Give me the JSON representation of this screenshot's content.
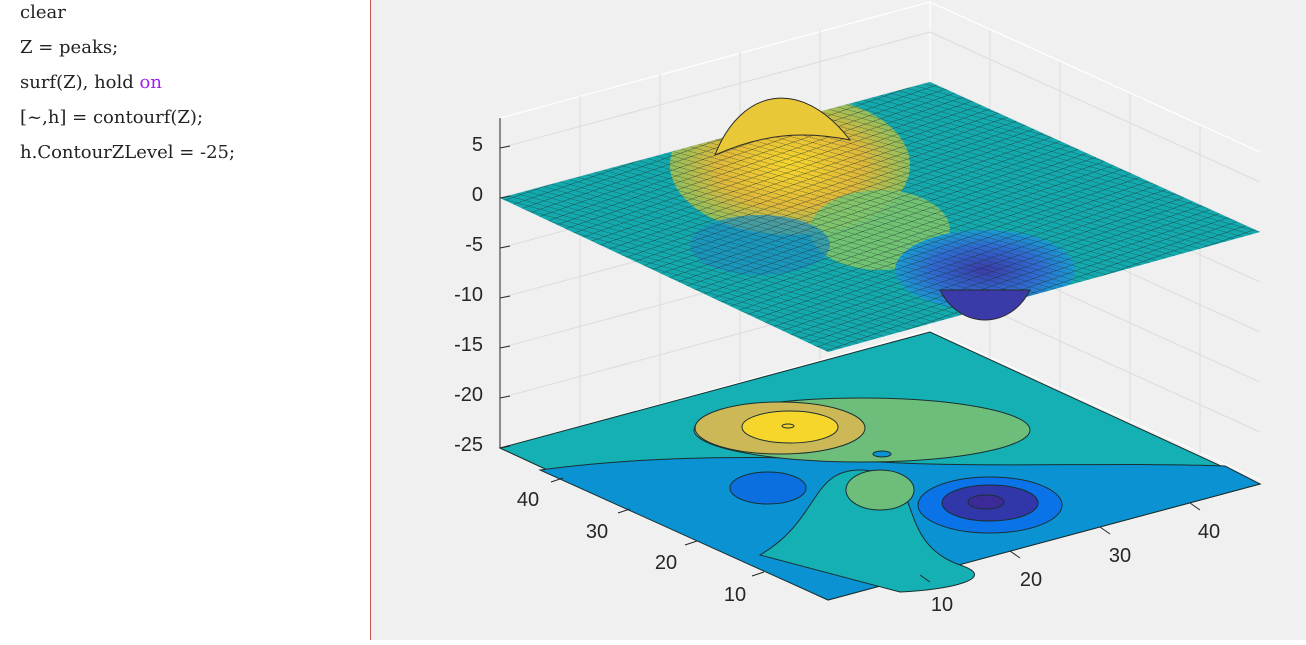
{
  "editor": {
    "lines": [
      {
        "text": "clear"
      },
      {
        "text": "Z = peaks;"
      },
      {
        "text": "surf(Z), hold ",
        "keyword": "on"
      },
      {
        "text": "[~,h] = contourf(Z);"
      },
      {
        "text": "h.ContourZLevel = -25;"
      }
    ]
  },
  "axes": {
    "z_ticks": [
      "5",
      "0",
      "-5",
      "-10",
      "-15",
      "-20",
      "-25"
    ],
    "x_ticks": [
      "10",
      "20",
      "30",
      "40"
    ],
    "y_ticks": [
      "10",
      "20",
      "30",
      "40"
    ]
  },
  "colors": {
    "keyword": "#a020f0",
    "plane_teal": "#14b0b4",
    "contour_blue": "#0a92d3",
    "peak_yellow": "#f7d62c"
  }
}
